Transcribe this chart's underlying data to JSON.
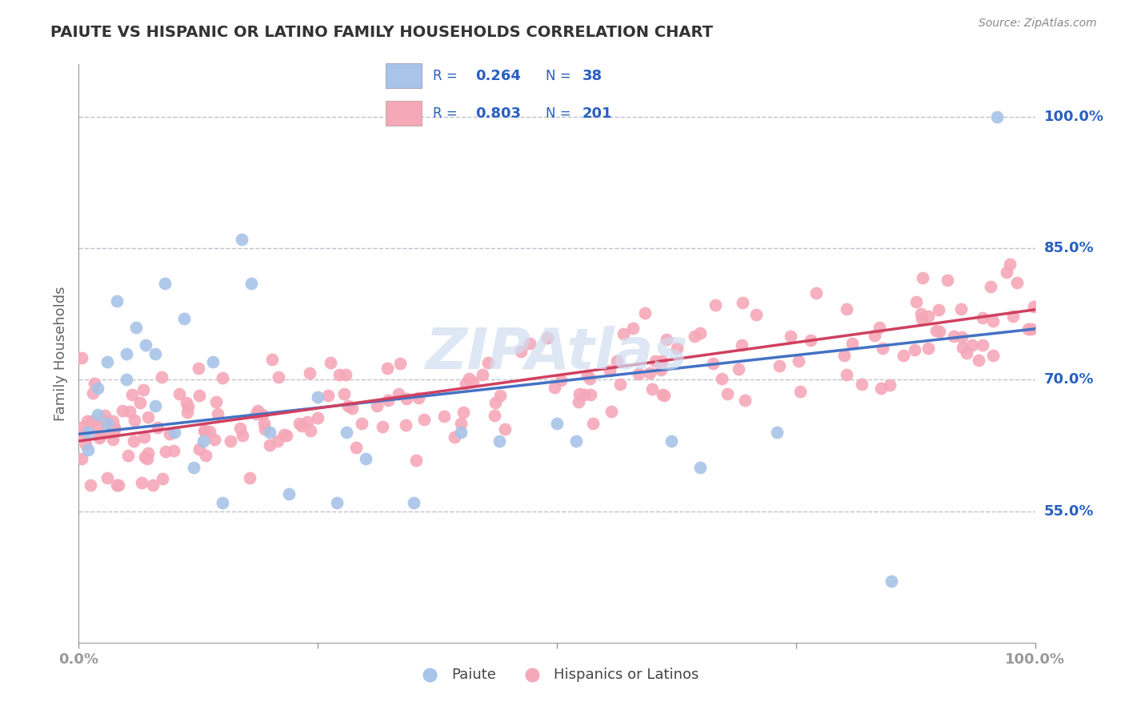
{
  "title": "PAIUTE VS HISPANIC OR LATINO FAMILY HOUSEHOLDS CORRELATION CHART",
  "source_text": "Source: ZipAtlas.com",
  "ylabel": "Family Households",
  "legend_r_paiute": "0.264",
  "legend_n_paiute": "38",
  "legend_r_hispanic": "0.803",
  "legend_n_hispanic": "201",
  "paiute_color": "#a8c4e8",
  "hispanic_color": "#f5a8b8",
  "paiute_line_color": "#4472c4",
  "hispanic_line_color": "#d04060",
  "background_color": "#ffffff",
  "grid_color": "#c0c0d0",
  "text_color": "#2860c0",
  "axis_color": "#999999",
  "title_color": "#333333",
  "source_color": "#888888",
  "ylabel_color": "#666666",
  "legend_label_paiute": "Paiute",
  "legend_label_hispanic": "Hispanics or Latinos",
  "watermark_text": "ZIPAtlas",
  "watermark_color": "#d0ddf0",
  "xlim": [
    0.0,
    1.0
  ],
  "ylim": [
    0.4,
    1.06
  ],
  "yticks": [
    0.55,
    0.7,
    0.85,
    1.0
  ],
  "ytick_labels": [
    "55.0%",
    "70.0%",
    "85.0%",
    "100.0%"
  ],
  "paiute_line_x": [
    0.0,
    1.0
  ],
  "paiute_line_y": [
    0.638,
    0.758
  ],
  "hispanic_line_x": [
    0.0,
    1.0
  ],
  "hispanic_line_y": [
    0.63,
    0.78
  ]
}
